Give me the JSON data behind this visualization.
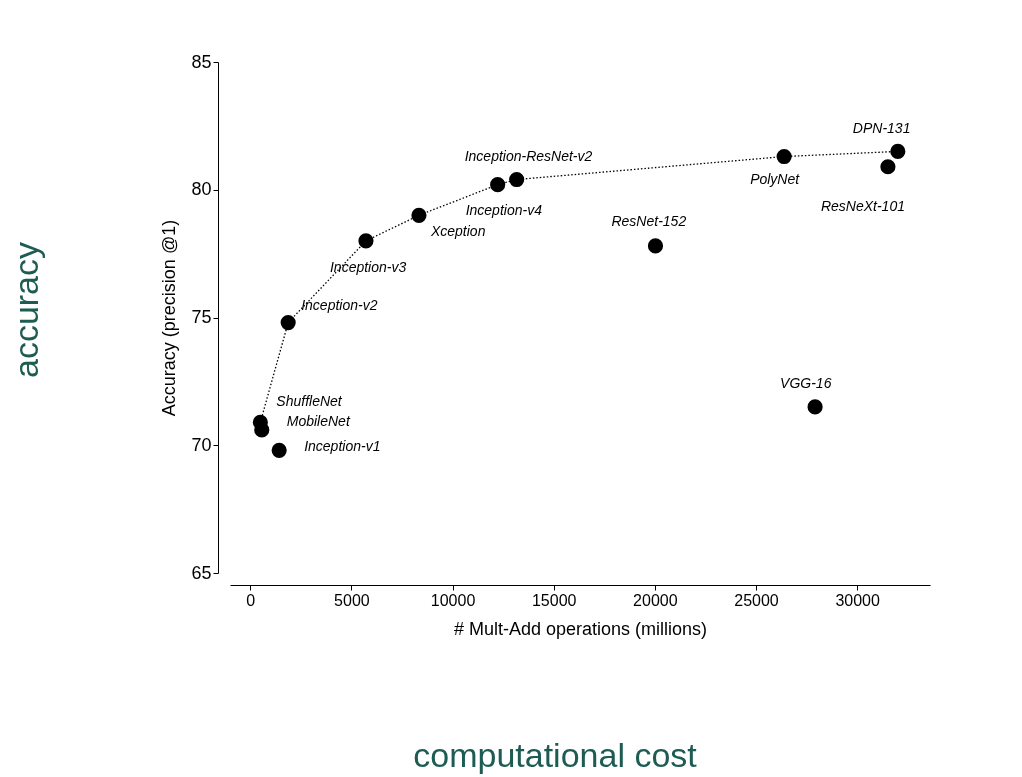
{
  "chart_data": {
    "type": "scatter",
    "xlabel": "# Mult-Add operations (millions)",
    "ylabel": "Accuracy (precision @1)",
    "xlim": [
      -1000,
      33600
    ],
    "ylim": [
      65,
      85
    ],
    "xticks": [
      0,
      5000,
      10000,
      15000,
      20000,
      25000,
      30000
    ],
    "yticks": [
      65,
      70,
      75,
      80,
      85
    ],
    "grid": false,
    "marker": "circle",
    "series": [
      {
        "color": "#000000",
        "x": [
          500,
          570,
          1430,
          1875,
          5720,
          8340,
          12230,
          13170,
          20030,
          26390,
          32010,
          31520,
          27920
        ],
        "values": [
          70.9,
          70.6,
          69.8,
          74.8,
          78.0,
          79.0,
          80.2,
          80.4,
          77.8,
          81.3,
          81.5,
          80.9,
          71.5
        ]
      },
      {
        "type": "line",
        "color": "#000000",
        "line_style": "dotted",
        "marker": "none",
        "x": [
          500,
          1875,
          5720,
          8340,
          12230,
          13170,
          26390,
          32010
        ],
        "values": [
          70.9,
          74.8,
          78.0,
          79.0,
          80.2,
          80.4,
          81.3,
          81.5
        ]
      }
    ],
    "annotations": [
      {
        "text": "ShuffleNet",
        "x": 500,
        "y": 70.9
      },
      {
        "text": "MobileNet",
        "x": 570,
        "y": 70.6
      },
      {
        "text": "Inception-v1",
        "x": 1430,
        "y": 69.8
      },
      {
        "text": "Inception-v2",
        "x": 1875,
        "y": 74.8
      },
      {
        "text": "Inception-v3",
        "x": 5720,
        "y": 78.0
      },
      {
        "text": "Xception",
        "x": 8340,
        "y": 79.0
      },
      {
        "text": "Inception-v4",
        "x": 12230,
        "y": 80.2
      },
      {
        "text": "Inception-ResNet-v2",
        "x": 13170,
        "y": 80.4
      },
      {
        "text": "ResNet-152",
        "x": 20030,
        "y": 77.8
      },
      {
        "text": "PolyNet",
        "x": 26390,
        "y": 81.3
      },
      {
        "text": "DPN-131",
        "x": 32010,
        "y": 81.5
      },
      {
        "text": "ResNeXt-101",
        "x": 31520,
        "y": 80.9
      },
      {
        "text": "VGG-16",
        "x": 27920,
        "y": 71.5
      },
      "accuracy",
      "computational cost"
    ]
  }
}
